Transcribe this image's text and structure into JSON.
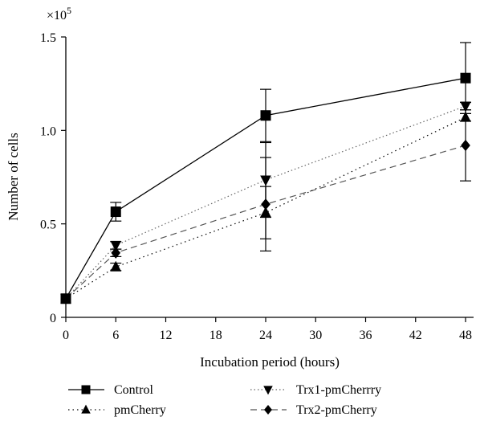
{
  "chart_data": {
    "type": "line",
    "title": "",
    "xlabel": "Incubation period (hours)",
    "ylabel": "Number of cells",
    "y_scale_label": "×10",
    "y_scale_exponent": "5",
    "xlim": [
      0,
      50
    ],
    "ylim": [
      0,
      1.5
    ],
    "x_ticks": [
      0,
      6,
      12,
      18,
      24,
      30,
      36,
      42,
      48
    ],
    "x_tick_labels": [
      "0",
      "6",
      "12",
      "18",
      "24",
      "30",
      "36",
      "42",
      "48"
    ],
    "y_ticks": [
      0,
      0.5,
      1.0,
      1.5
    ],
    "y_tick_labels": [
      "0",
      "0.5",
      "1.0",
      "1.5"
    ],
    "grid": false,
    "legend_position": "bottom",
    "x": [
      0,
      6,
      24,
      48
    ],
    "series": [
      {
        "name": "Control",
        "marker": "square",
        "dash": "solid",
        "values": [
          0.1,
          0.565,
          1.08,
          1.28
        ],
        "errors": [
          0,
          0.05,
          0.14,
          0.19
        ]
      },
      {
        "name": "pmCherry",
        "marker": "triangle-up",
        "dash": "dotted",
        "values": [
          0.1,
          0.27,
          0.56,
          1.07
        ],
        "errors": [
          0,
          0.02,
          0.14,
          0.02
        ]
      },
      {
        "name": "Trx1-pmCherrry",
        "marker": "triangle-down",
        "dash": "dotted-light",
        "values": [
          0.1,
          0.385,
          0.735,
          1.13
        ],
        "errors": [
          0,
          0.02,
          0.2,
          0.02
        ]
      },
      {
        "name": "Trx2-pmCherry",
        "marker": "diamond",
        "dash": "dashed",
        "values": [
          0.1,
          0.345,
          0.605,
          0.92
        ],
        "errors": [
          0,
          0.02,
          0.25,
          0.19
        ]
      }
    ]
  }
}
